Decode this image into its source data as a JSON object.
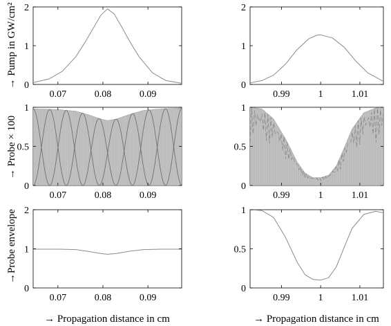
{
  "figure": {
    "ylabels": [
      "→ Pump in GW/cm²",
      "→ Probe × 100",
      "→Probe envelope"
    ],
    "xlabels": [
      "→ Propagation distance in cm",
      "→ Propagation distance in cm"
    ]
  },
  "chart_data": [
    {
      "type": "line",
      "panel": "pump-left",
      "ylabel": "→ Pump in GW/cm²",
      "xlim": [
        0.0645,
        0.0975
      ],
      "ylim": [
        0,
        2
      ],
      "xticks": [
        0.07,
        0.08,
        0.09
      ],
      "xtick_labels": [
        "0.07",
        "0.08",
        "0.09"
      ],
      "yticks": [
        0,
        1,
        2
      ],
      "ytick_labels": [
        "0",
        "1",
        "2"
      ],
      "series": [
        {
          "x": [
            0.0645,
            0.068,
            0.071,
            0.074,
            0.076,
            0.078,
            0.0795,
            0.081,
            0.0825,
            0.084,
            0.086,
            0.088,
            0.091,
            0.094,
            0.0975
          ],
          "y": [
            0.05,
            0.14,
            0.34,
            0.72,
            1.08,
            1.48,
            1.78,
            1.95,
            1.82,
            1.52,
            1.1,
            0.72,
            0.3,
            0.1,
            0.03
          ]
        }
      ]
    },
    {
      "type": "line",
      "panel": "pump-right",
      "xlim": [
        0.982,
        1.016
      ],
      "ylim": [
        0,
        2
      ],
      "xticks": [
        0.99,
        1.0,
        1.01
      ],
      "xtick_labels": [
        "0.99",
        "1",
        "1.01"
      ],
      "yticks": [
        0,
        1,
        2
      ],
      "ytick_labels": [
        "0",
        "1",
        "2"
      ],
      "series": [
        {
          "x": [
            0.982,
            0.985,
            0.988,
            0.991,
            0.994,
            0.997,
            0.999,
            1.0,
            1.003,
            1.006,
            1.009,
            1.012,
            1.016
          ],
          "y": [
            0.04,
            0.1,
            0.24,
            0.52,
            0.9,
            1.18,
            1.27,
            1.28,
            1.2,
            0.96,
            0.6,
            0.3,
            0.08
          ]
        }
      ]
    },
    {
      "type": "area",
      "panel": "probe-left",
      "ylabel": "→ Probe × 100",
      "xlim": [
        0.0645,
        0.0975
      ],
      "ylim": [
        0,
        1
      ],
      "xticks": [
        0.07,
        0.08,
        0.09
      ],
      "xtick_labels": [
        "0.07",
        "0.08",
        "0.09"
      ],
      "yticks": [
        0,
        0.5,
        1
      ],
      "ytick_labels": [
        "0",
        "0.5",
        "1"
      ],
      "series": [
        {
          "x": [
            0.0645,
            0.07,
            0.074,
            0.077,
            0.0795,
            0.081,
            0.083,
            0.086,
            0.089,
            0.093,
            0.0975
          ],
          "y": [
            0.98,
            0.97,
            0.95,
            0.9,
            0.85,
            0.83,
            0.85,
            0.91,
            0.96,
            0.98,
            0.99
          ]
        }
      ],
      "fill": "#c4c4c4",
      "oscillation_period": 0.00735
    },
    {
      "type": "area",
      "panel": "probe-right",
      "xlim": [
        0.982,
        1.016
      ],
      "ylim": [
        0,
        1
      ],
      "xticks": [
        0.99,
        1.0,
        1.01
      ],
      "xtick_labels": [
        "0.99",
        "1",
        "1.01"
      ],
      "yticks": [
        0,
        0.5,
        1
      ],
      "ytick_labels": [
        "0",
        "0.5",
        "1"
      ],
      "series": [
        {
          "x": [
            0.982,
            0.985,
            0.988,
            0.991,
            0.994,
            0.996,
            0.998,
            1.0,
            1.002,
            1.004,
            1.006,
            1.008,
            1.011,
            1.014,
            1.016
          ],
          "y": [
            1.0,
            0.98,
            0.85,
            0.6,
            0.3,
            0.16,
            0.1,
            0.1,
            0.13,
            0.25,
            0.48,
            0.72,
            0.93,
            0.99,
            1.0
          ]
        }
      ],
      "fill": "#c4c4c4"
    },
    {
      "type": "line",
      "panel": "envelope-left",
      "ylabel": "→Probe envelope",
      "xlabel": "→ Propagation distance in cm",
      "xlim": [
        0.0645,
        0.0975
      ],
      "ylim": [
        0,
        2
      ],
      "xticks": [
        0.07,
        0.08,
        0.09
      ],
      "xtick_labels": [
        "0.07",
        "0.08",
        "0.09"
      ],
      "yticks": [
        0,
        1,
        2
      ],
      "ytick_labels": [
        "0",
        "1",
        "2"
      ],
      "series": [
        {
          "x": [
            0.0645,
            0.07,
            0.074,
            0.077,
            0.0795,
            0.081,
            0.083,
            0.086,
            0.089,
            0.093,
            0.0975
          ],
          "y": [
            0.99,
            0.99,
            0.98,
            0.93,
            0.88,
            0.86,
            0.88,
            0.94,
            0.98,
            0.99,
            0.99
          ]
        }
      ]
    },
    {
      "type": "line",
      "panel": "envelope-right",
      "xlabel": "→ Propagation distance in cm",
      "xlim": [
        0.982,
        1.016
      ],
      "ylim": [
        0,
        1
      ],
      "xticks": [
        0.99,
        1.0,
        1.01
      ],
      "xtick_labels": [
        "0.99",
        "1",
        "1.01"
      ],
      "yticks": [
        0,
        0.5,
        1
      ],
      "ytick_labels": [
        "0",
        "0.5",
        "1"
      ],
      "series": [
        {
          "x": [
            0.982,
            0.985,
            0.988,
            0.991,
            0.994,
            0.996,
            0.998,
            1.0,
            1.002,
            1.004,
            1.006,
            1.008,
            1.011,
            1.014,
            1.016
          ],
          "y": [
            1.0,
            0.99,
            0.9,
            0.65,
            0.33,
            0.17,
            0.11,
            0.1,
            0.13,
            0.27,
            0.52,
            0.76,
            0.94,
            0.98,
            0.96
          ]
        }
      ]
    }
  ]
}
